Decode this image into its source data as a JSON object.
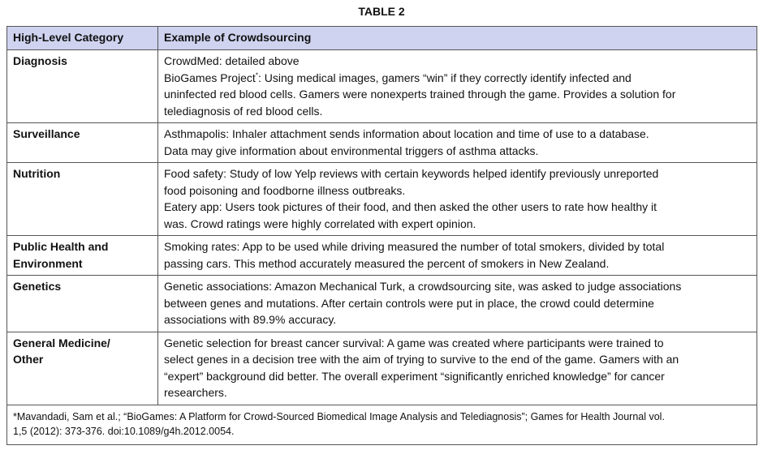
{
  "title": "TABLE 2",
  "headers": [
    "High-Level Category",
    "Example of Crowdsourcing"
  ],
  "rows": [
    {
      "category": [
        "Diagnosis"
      ],
      "lines": [
        "CrowdMed: detailed above",
        "BioGames Project*: Using medical images, gamers “win” if they correctly identify infected and",
        "uninfected red blood cells. Gamers were nonexperts trained through the game. Provides a solution for",
        "telediagnosis of red blood cells."
      ]
    },
    {
      "category": [
        "Surveillance"
      ],
      "lines": [
        "Asthmapolis: Inhaler attachment sends information about location and time of use to a database.",
        "Data may give information about environmental triggers of asthma attacks."
      ]
    },
    {
      "category": [
        "Nutrition"
      ],
      "lines": [
        " Food safety: Study of low Yelp reviews with certain keywords helped identify previously unreported",
        "food poisoning and foodborne illness outbreaks.",
        "Eatery app: Users took pictures of their food, and then asked the other users to rate how healthy it",
        "was. Crowd ratings were highly correlated with expert opinion."
      ]
    },
    {
      "category": [
        "Public Health and",
        "Environment"
      ],
      "lines": [
        "Smoking rates: App to be used while driving measured the number of total smokers, divided by total",
        "passing cars. This method accurately measured the percent of smokers in New Zealand."
      ]
    },
    {
      "category": [
        "Genetics"
      ],
      "lines": [
        "Genetic associations: Amazon Mechanical Turk, a crowdsourcing site, was asked to judge associations",
        "between genes and mutations. After certain controls were put in place, the crowd could determine",
        "associations with 89.9% accuracy."
      ]
    },
    {
      "category": [
        "General Medicine/",
        "Other"
      ],
      "lines": [
        "Genetic selection for breast cancer survival: A game was created where participants were trained to",
        "select genes in a decision tree with the aim of trying to survive to the end of the game. Gamers with an",
        "“expert” background did better. The overall experiment “significantly enriched knowledge” for cancer",
        "researchers."
      ]
    }
  ],
  "footnote": [
    "*Mavandadi, Sam et al.; “BioGames: A Platform for Crowd-Sourced Biomedical Image Analysis and Telediagnosis”; Games for Health Journal vol.",
    "1,5 (2012): 373-376. doi:10.1089/g4h.2012.0054."
  ],
  "colors": {
    "header_bg": "#cfd3ef",
    "border": "#555555"
  }
}
